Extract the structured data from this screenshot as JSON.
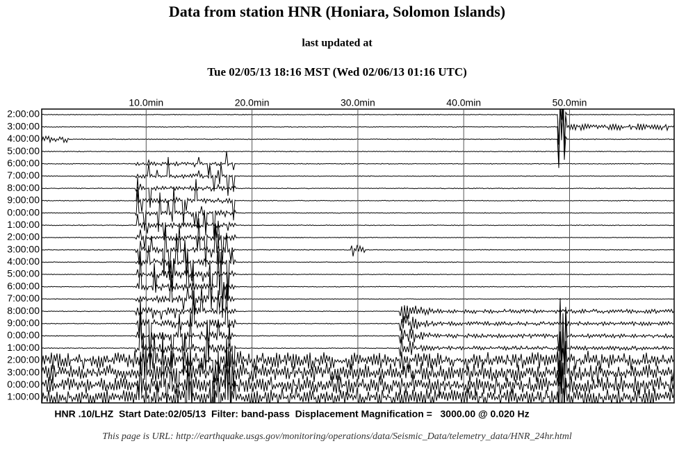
{
  "header": {
    "title": "Data from station HNR (Honiara, Solomon Islands)",
    "subtitle": "last updated at",
    "timestamp": "Tue 02/05/13 18:16 MST (Wed 02/06/13 01:16 UTC)"
  },
  "plot": {
    "x_labels": [
      "10.0min",
      "20.0min",
      "30.0min",
      "40.0min",
      "50.0min"
    ],
    "row_labels": [
      "2:00:00",
      "3:00:00",
      "4:00:00",
      "5:00:00",
      "6:00:00",
      "7:00:00",
      "8:00:00",
      "9:00:00",
      "0:00:00",
      "1:00:00",
      "2:00:00",
      "3:00:00",
      "4:00:00",
      "5:00:00",
      "6:00:00",
      "7:00:00",
      "8:00:00",
      "9:00:00",
      "0:00:00",
      "1:00:00",
      "2:00:00",
      "3:00:00",
      "0:00:00",
      "1:00:00"
    ],
    "caption": "HNR .10/LHZ  Start Date:02/05/13  Filter: band-pass  Displacement Magnification =   3000.00 @ 0.020 Hz"
  },
  "footer": "This page is URL: http://earthquake.usgs.gov/monitoring/operations/data/Seismic_Data/telemetry_data/HNR_24hr.html"
}
